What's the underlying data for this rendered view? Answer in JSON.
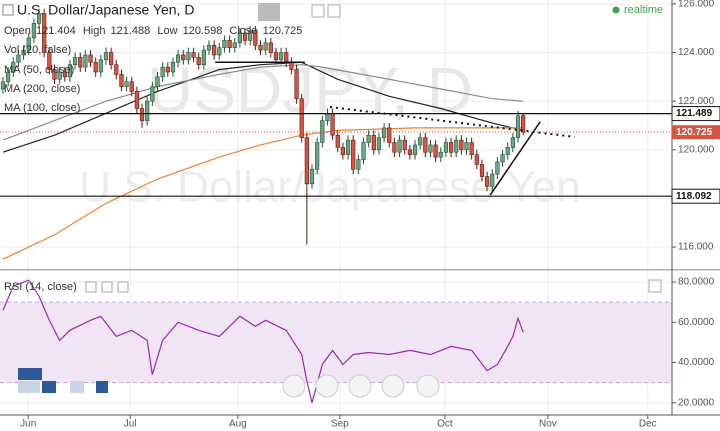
{
  "chart_data": {
    "type": "candlestick",
    "title": "U.S. Dollar/Japanese Yen, D",
    "watermark": "USDJPY, D",
    "watermark_subtitle": "U.S. Dollar/Japanese Yen",
    "status": "realtime",
    "ohlc_labels": [
      "Open",
      "High",
      "Low",
      "Close"
    ],
    "ohlc_values": [
      121.404,
      121.488,
      120.598,
      120.725
    ],
    "volume_label": "Vol (20, false)",
    "up_color": "#6ba583",
    "down_color": "#d75442",
    "open": [
      122.5,
      122.8,
      123.2,
      123.6,
      123.9,
      124.1,
      124.6,
      125.2,
      125.6,
      124.0,
      123.3,
      122.9,
      123.2,
      123.0,
      123.5,
      123.8,
      123.4,
      123.9,
      123.6,
      123.2,
      123.7,
      124.0,
      123.5,
      123.1,
      122.6,
      122.8,
      122.4,
      121.7,
      121.2,
      122.0,
      122.6,
      123.0,
      123.4,
      123.2,
      123.6,
      123.9,
      123.7,
      124.0,
      123.8,
      123.5,
      124.1,
      124.3,
      123.9,
      124.2,
      124.5,
      124.2,
      124.4,
      124.8,
      124.5,
      124.9,
      124.3,
      124.1,
      124.4,
      124.0,
      123.7,
      124.0,
      123.6,
      123.3,
      122.1,
      120.5,
      118.6,
      119.2,
      120.3,
      121.2,
      121.5,
      120.6,
      120.1,
      119.8,
      120.4,
      119.2,
      119.6,
      120.3,
      120.6,
      120.0,
      120.5,
      120.9,
      120.3,
      119.9,
      120.4,
      120.0,
      119.8,
      120.2,
      120.5,
      119.9,
      120.2,
      119.7,
      119.9,
      120.3,
      119.9,
      120.4,
      120.0,
      120.3,
      119.8,
      119.4,
      118.9,
      118.5,
      119.0,
      119.5,
      119.8,
      120.1,
      120.5,
      121.404
    ],
    "high": [
      123.0,
      123.4,
      123.8,
      124.1,
      124.3,
      124.8,
      125.4,
      125.8,
      125.8,
      124.2,
      123.5,
      123.4,
      123.4,
      123.7,
      124.0,
      124.0,
      124.1,
      124.1,
      123.8,
      123.9,
      124.2,
      124.2,
      123.7,
      123.3,
      123.0,
      123.0,
      122.6,
      121.9,
      122.2,
      122.8,
      123.2,
      123.6,
      123.6,
      123.8,
      124.1,
      124.1,
      124.2,
      124.2,
      124.0,
      124.3,
      124.5,
      124.5,
      124.4,
      124.7,
      124.7,
      124.6,
      125.0,
      125.0,
      125.1,
      125.1,
      124.5,
      124.6,
      124.6,
      124.2,
      124.2,
      124.2,
      123.8,
      123.5,
      122.3,
      120.7,
      119.4,
      120.5,
      121.4,
      121.7,
      121.7,
      120.8,
      120.3,
      120.6,
      120.6,
      119.8,
      120.5,
      120.8,
      120.8,
      120.7,
      121.1,
      121.1,
      120.5,
      120.6,
      120.6,
      120.2,
      120.4,
      120.7,
      120.7,
      120.4,
      120.4,
      120.1,
      120.5,
      120.5,
      120.6,
      120.6,
      120.5,
      120.5,
      120.0,
      119.6,
      119.1,
      119.2,
      119.7,
      120.0,
      120.3,
      120.7,
      121.6,
      121.488
    ],
    "low": [
      122.3,
      122.6,
      123.0,
      123.4,
      123.7,
      123.9,
      124.4,
      125.0,
      123.8,
      123.1,
      122.7,
      122.7,
      122.8,
      122.8,
      123.3,
      123.2,
      123.2,
      123.4,
      123.0,
      123.0,
      123.5,
      123.3,
      122.9,
      122.4,
      122.4,
      122.2,
      121.5,
      120.9,
      121.0,
      121.8,
      122.4,
      122.8,
      123.0,
      123.0,
      123.4,
      123.5,
      123.5,
      123.6,
      123.3,
      123.3,
      123.9,
      123.7,
      123.7,
      124.0,
      124.0,
      124.0,
      124.2,
      124.3,
      124.3,
      124.1,
      123.9,
      123.9,
      123.8,
      123.5,
      123.5,
      123.4,
      123.1,
      121.9,
      120.3,
      116.1,
      118.4,
      119.0,
      120.1,
      121.0,
      120.4,
      119.9,
      119.6,
      119.6,
      119.0,
      119.0,
      119.4,
      120.1,
      119.8,
      119.8,
      120.3,
      120.1,
      119.7,
      119.7,
      119.8,
      119.6,
      119.6,
      120.0,
      119.7,
      119.7,
      119.5,
      119.5,
      119.7,
      119.7,
      119.7,
      119.8,
      119.8,
      119.6,
      119.2,
      118.7,
      118.3,
      118.3,
      118.8,
      119.3,
      119.6,
      119.9,
      120.3,
      120.598
    ],
    "close": [
      122.8,
      123.2,
      123.6,
      123.9,
      124.1,
      124.6,
      125.2,
      125.6,
      124.0,
      123.3,
      122.9,
      123.2,
      123.0,
      123.5,
      123.8,
      123.4,
      123.9,
      123.6,
      123.2,
      123.7,
      124.0,
      123.5,
      123.1,
      122.6,
      122.8,
      122.4,
      121.7,
      121.2,
      122.0,
      122.6,
      123.0,
      123.4,
      123.2,
      123.6,
      123.9,
      123.7,
      124.0,
      123.8,
      123.5,
      124.1,
      124.3,
      123.9,
      124.2,
      124.5,
      124.2,
      124.4,
      124.8,
      124.5,
      124.9,
      124.3,
      124.1,
      124.4,
      124.0,
      123.7,
      124.0,
      123.6,
      123.3,
      122.1,
      120.5,
      118.6,
      119.2,
      120.3,
      121.2,
      121.5,
      120.6,
      120.1,
      119.8,
      120.4,
      119.2,
      119.6,
      120.3,
      120.6,
      120.0,
      120.5,
      120.9,
      120.3,
      119.9,
      120.4,
      120.0,
      119.8,
      120.2,
      120.5,
      119.9,
      120.2,
      119.7,
      119.9,
      120.3,
      119.9,
      120.4,
      120.0,
      120.3,
      119.8,
      119.4,
      118.9,
      118.5,
      119.0,
      119.5,
      119.8,
      120.1,
      120.5,
      121.4,
      120.725
    ],
    "xlim": [
      -0.58,
      129.9
    ],
    "xticks": [
      {
        "value": 4.9,
        "label": "Jun"
      },
      {
        "value": 24.7,
        "label": "Jul"
      },
      {
        "value": 45.6,
        "label": "Aug"
      },
      {
        "value": 65.4,
        "label": "Sep"
      },
      {
        "value": 85.8,
        "label": "Oct"
      },
      {
        "value": 105.8,
        "label": "Nov"
      },
      {
        "value": 125.2,
        "label": "Dec"
      }
    ],
    "ylim": [
      115.14,
      126.16
    ],
    "yticks": [
      {
        "value": 126,
        "label": "126.000"
      },
      {
        "value": 124,
        "label": "124.000"
      },
      {
        "value": 122,
        "label": "122.000"
      },
      {
        "value": 120,
        "label": "120.000"
      },
      {
        "value": 118,
        "label": "118.000"
      },
      {
        "value": 116,
        "label": "116.000"
      }
    ],
    "series": [
      {
        "name": "MA (50, close)",
        "color": "#222222",
        "x": [
          0,
          10,
          20,
          30,
          42,
          50,
          58,
          65,
          75,
          85,
          95,
          101
        ],
        "values": [
          119.9,
          120.6,
          121.5,
          122.4,
          123.3,
          123.5,
          123.6,
          122.9,
          122.2,
          121.7,
          121.1,
          120.8
        ]
      },
      {
        "name": "MA (200, close)",
        "color": "#f57f2a",
        "x": [
          0,
          10,
          20,
          30,
          42,
          50,
          58,
          65,
          80,
          101
        ],
        "values": [
          115.5,
          116.5,
          117.8,
          118.8,
          119.7,
          120.2,
          120.6,
          120.8,
          120.9,
          120.9
        ]
      },
      {
        "name": "MA (100, close)",
        "color": "#8a8a8a",
        "x": [
          0,
          10,
          20,
          30,
          42,
          50,
          58,
          62,
          75,
          85,
          95,
          101
        ],
        "values": [
          120.4,
          121.2,
          122.0,
          122.6,
          123.1,
          123.4,
          123.5,
          123.4,
          122.9,
          122.5,
          122.1,
          122.0
        ]
      }
    ],
    "levels": [
      121.489,
      118.092
    ],
    "last_price": 120.725,
    "trendlines": [
      {
        "x": [
          63.5,
          111
        ],
        "y": [
          121.76,
          120.53
        ],
        "dash": true
      },
      {
        "x": [
          94.6,
          104.3
        ],
        "y": [
          118.14,
          121.15
        ],
        "dash": false
      },
      {
        "x": [
          41.2,
          58.6
        ],
        "y": [
          123.6,
          123.6
        ],
        "dash": false
      }
    ],
    "rsi": {
      "title": "RSI (14, close)",
      "color": "#9c27b0",
      "band": [
        30,
        70
      ],
      "ylim": [
        13.9,
        86
      ],
      "yticks": [
        {
          "value": 80,
          "label": "80.0000"
        },
        {
          "value": 60,
          "label": "60.0000"
        },
        {
          "value": 40,
          "label": "40.0000"
        },
        {
          "value": 20,
          "label": "20.0000"
        }
      ],
      "x": [
        0,
        2,
        5,
        7,
        9,
        11,
        13,
        17,
        19,
        22,
        25,
        28,
        29,
        31,
        34,
        38,
        42,
        46,
        49,
        51,
        55,
        58,
        59,
        60,
        62,
        64,
        66,
        68,
        71,
        75,
        79,
        83,
        87,
        91,
        94,
        96,
        98,
        99,
        100,
        101
      ],
      "values": [
        66,
        78,
        81,
        73,
        61,
        51,
        56,
        61,
        63,
        53,
        56,
        51,
        34,
        51,
        60,
        56,
        53,
        63,
        58,
        61,
        56,
        44,
        31,
        20,
        39,
        46,
        39,
        44,
        45,
        44,
        46,
        44,
        48,
        46,
        36,
        39,
        48,
        53,
        62,
        55
      ]
    }
  }
}
